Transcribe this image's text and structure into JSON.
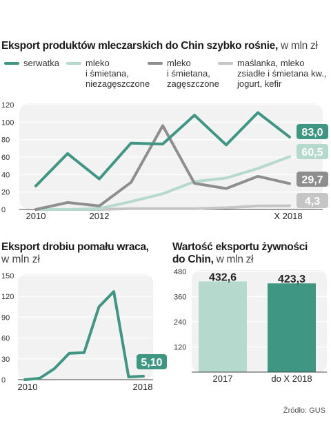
{
  "chart_data": [
    {
      "type": "line",
      "title": "Eksport produktów mleczarskich do Chin szybko rośnie,",
      "unit": "w mln zł",
      "x": [
        "2010",
        "2011",
        "2012",
        "2013",
        "2014",
        "2015",
        "2016",
        "2017",
        "2018"
      ],
      "xtick_labels": [
        "2010",
        "2012",
        "X 2018"
      ],
      "ylim": [
        0,
        120
      ],
      "yticks": [
        "0",
        "20",
        "40",
        "60",
        "80",
        "100",
        "120"
      ],
      "series": [
        {
          "name": "serwatka",
          "color": "#3e9683",
          "values": [
            27,
            64,
            35,
            76,
            75,
            108,
            74,
            111,
            83.0
          ],
          "end_label": "83,0"
        },
        {
          "name": "mleko\ni śmietana,\nniezagęszczone",
          "color": "#b6d9cd",
          "values": [
            0,
            0,
            1,
            9,
            18,
            32,
            36,
            47,
            60.5
          ],
          "end_label": "60,5"
        },
        {
          "name": "mleko\ni śmietana,\nzagęszczone",
          "color": "#8e8e8e",
          "values": [
            0,
            8,
            4,
            31,
            96,
            30,
            24,
            38,
            29.7
          ],
          "end_label": "29,7"
        },
        {
          "name": "maślanka, mleko\nzsiadłe i śmietana kw.,\njogurt, kefir",
          "color": "#c5c5c5",
          "values": [
            0,
            0,
            0,
            1,
            1,
            1,
            2,
            4,
            4.3
          ],
          "end_label": "4,3"
        }
      ]
    },
    {
      "type": "line",
      "title": "Eksport drobiu pomału wraca,",
      "unit": "w mln zł",
      "x": [
        "2010",
        "2011",
        "2012",
        "2013",
        "2014",
        "2015",
        "2016",
        "2017",
        "2018"
      ],
      "xtick_labels": [
        "2010",
        "2018"
      ],
      "ylim": [
        0,
        150
      ],
      "yticks": [
        "0",
        "30",
        "60",
        "90",
        "120",
        "150"
      ],
      "series": [
        {
          "name": "",
          "color": "#3e9683",
          "values": [
            0,
            2,
            16,
            38,
            39,
            105,
            127,
            4,
            5.1
          ],
          "end_label": "5,10"
        }
      ]
    },
    {
      "type": "bar",
      "title": "Wartość eksportu żywności",
      "title_line2": "do Chin,",
      "unit": "w mln zł",
      "categories": [
        "2017",
        "do X 2018"
      ],
      "values": [
        432.6,
        423.3
      ],
      "value_labels": [
        "432,6",
        "423,3"
      ],
      "colors": [
        "#b6d9cd",
        "#3e9683"
      ],
      "ylim": [
        0,
        480
      ],
      "yticks": [
        "120",
        "240",
        "360",
        "480"
      ]
    }
  ],
  "source": "Źródło: GUS"
}
